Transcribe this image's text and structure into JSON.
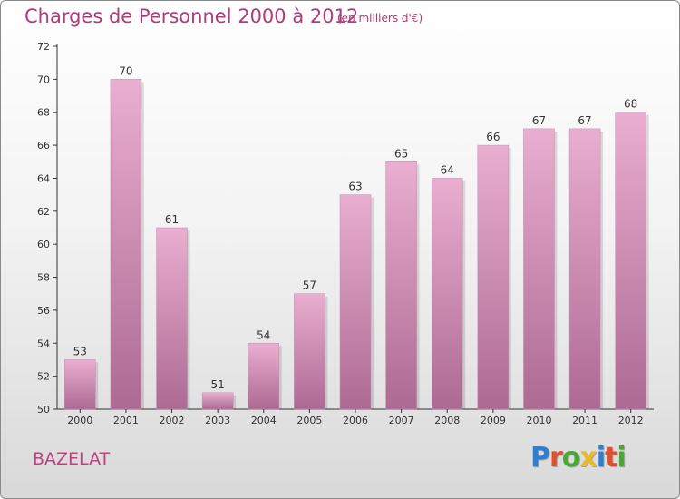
{
  "header": {
    "title": "Charges de Personnel 2000 à 2012",
    "subtitle": "(en milliers d'€)"
  },
  "footer": {
    "commune": "BAZELAT",
    "logo_letters": [
      "P",
      "r",
      "o",
      "x",
      "i",
      "t",
      "i"
    ],
    "logo_colors": [
      "#2e7fcf",
      "#e0502a",
      "#4aa832",
      "#e8b92a",
      "#2e7fcf",
      "#e0502a",
      "#4aa832"
    ]
  },
  "colors": {
    "bar_top": "#e9aed0",
    "bar_bottom": "#ad6a93",
    "text": "#b03a7a",
    "axis": "#333333"
  },
  "chart_data": {
    "type": "bar",
    "categories": [
      "2000",
      "2001",
      "2002",
      "2003",
      "2004",
      "2005",
      "2006",
      "2007",
      "2008",
      "2009",
      "2010",
      "2011",
      "2012"
    ],
    "values": [
      53,
      70,
      61,
      51,
      54,
      57,
      63,
      65,
      64,
      66,
      67,
      67,
      68
    ],
    "ylim": [
      50,
      72
    ],
    "yticks": [
      50,
      52,
      54,
      56,
      58,
      60,
      62,
      64,
      66,
      68,
      70,
      72
    ],
    "title": "Charges de Personnel 2000 à 2012",
    "subtitle": "(en milliers d'€)",
    "xlabel": "",
    "ylabel": "",
    "grid": false,
    "data_labels": true
  }
}
